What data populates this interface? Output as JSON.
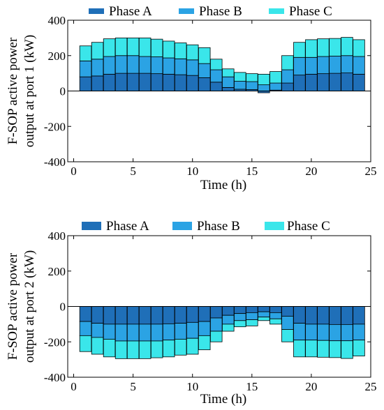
{
  "colors": {
    "phaseA": "#1f6fb8",
    "phaseB": "#2ba3e4",
    "phaseC": "#3ae6ea",
    "edge": "#000000"
  },
  "chart_data": [
    {
      "type": "bar",
      "stacked": true,
      "x": [
        1,
        2,
        3,
        4,
        5,
        6,
        7,
        8,
        9,
        10,
        11,
        12,
        13,
        14,
        15,
        16,
        17,
        18,
        19,
        20,
        21,
        22,
        23,
        24
      ],
      "series": [
        {
          "name": "Phase A",
          "values": [
            80,
            85,
            95,
            100,
            100,
            100,
            98,
            95,
            92,
            88,
            75,
            50,
            20,
            10,
            8,
            -10,
            5,
            45,
            90,
            95,
            98,
            100,
            102,
            95
          ]
        },
        {
          "name": "Phase B",
          "values": [
            90,
            95,
            100,
            100,
            100,
            95,
            95,
            92,
            90,
            88,
            80,
            70,
            60,
            45,
            45,
            35,
            40,
            75,
            100,
            95,
            97,
            97,
            98,
            100
          ]
        },
        {
          "name": "Phase C",
          "values": [
            85,
            95,
            100,
            100,
            100,
            105,
            100,
            95,
            90,
            85,
            90,
            60,
            45,
            50,
            45,
            60,
            65,
            80,
            85,
            100,
            100,
            100,
            103,
            95
          ]
        }
      ],
      "ylabel_lines": [
        "F-SOP active power",
        "output at port 1 (kW)"
      ],
      "xlabel": "Time (h)",
      "xlim": [
        -0.5,
        25
      ],
      "ylim": [
        -400,
        400
      ],
      "xticks": [
        0,
        5,
        10,
        15,
        20,
        25
      ],
      "yticks": [
        400,
        200,
        0,
        -200,
        -400
      ],
      "legend": "top",
      "grid": false
    },
    {
      "type": "bar",
      "stacked": true,
      "x": [
        1,
        2,
        3,
        4,
        5,
        6,
        7,
        8,
        9,
        10,
        11,
        12,
        13,
        14,
        15,
        16,
        17,
        18,
        19,
        20,
        21,
        22,
        23,
        24
      ],
      "series": [
        {
          "name": "Phase A",
          "values": [
            -85,
            -95,
            -100,
            -100,
            -100,
            -100,
            -100,
            -98,
            -95,
            -90,
            -85,
            -65,
            -50,
            -40,
            -35,
            -30,
            -35,
            -55,
            -95,
            -100,
            -100,
            -102,
            -102,
            -100
          ]
        },
        {
          "name": "Phase B",
          "values": [
            -80,
            -80,
            -85,
            -95,
            -95,
            -95,
            -95,
            -92,
            -90,
            -90,
            -80,
            -75,
            -50,
            -40,
            -40,
            -30,
            -35,
            -75,
            -95,
            -90,
            -92,
            -92,
            -92,
            -90
          ]
        },
        {
          "name": "Phase C",
          "values": [
            -90,
            -95,
            -100,
            -100,
            -100,
            -100,
            -95,
            -95,
            -90,
            -90,
            -80,
            -60,
            -40,
            -35,
            -35,
            -20,
            -30,
            -70,
            -95,
            -95,
            -95,
            -95,
            -100,
            -90
          ]
        }
      ],
      "ylabel_lines": [
        "F-SOP active power",
        "output at port 2 (kW)"
      ],
      "xlabel": "Time (h)",
      "xlim": [
        -0.5,
        25
      ],
      "ylim": [
        -400,
        400
      ],
      "xticks": [
        0,
        5,
        10,
        15,
        20,
        25
      ],
      "yticks": [
        400,
        200,
        0,
        -200,
        -400
      ],
      "legend": "top",
      "grid": false
    }
  ]
}
